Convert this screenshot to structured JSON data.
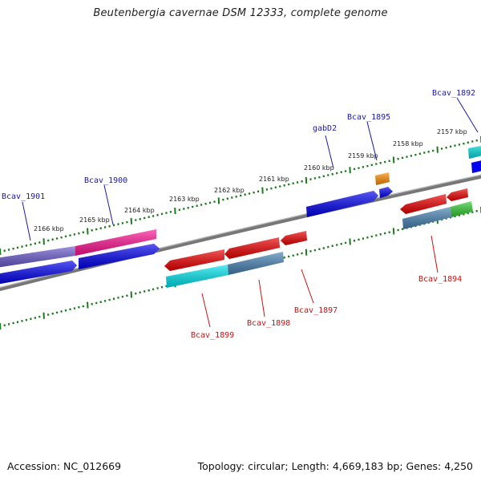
{
  "title": "Beutenbergia cavernae DSM 12333, complete genome",
  "footer": {
    "accession": "Accession: NC_012669",
    "summary": "Topology: circular; Length: 4,669,183 bp; Genes: 4,250"
  },
  "colors": {
    "backbone": "#7a7a7a",
    "ticks": "#1e7a1e",
    "label_blue": "#1a1aa8",
    "label_red": "#cc1111"
  },
  "kbp_labels": [
    "2157 kbp",
    "2158 kbp",
    "2159 kbp",
    "2160 kbp",
    "2161 kbp",
    "2162 kbp",
    "2163 kbp",
    "2164 kbp",
    "2165 kbp",
    "2166 kbp"
  ],
  "genes_top": [
    {
      "name": "Bcav_1901",
      "label": "Bcav_1901",
      "color": "#6a5acd"
    },
    {
      "name": "Bcav_1900",
      "label": "Bcav_1900",
      "color": "#ff1493"
    },
    {
      "name": "gabD2",
      "label": "gabD2",
      "color": "#0000ee"
    },
    {
      "name": "Bcav_1895",
      "label": "Bcav_1895",
      "color": "#ff8c00"
    },
    {
      "name": "Bcav_1892",
      "label": "Bcav_1892",
      "color": "#00dddd"
    }
  ],
  "genes_bottom": [
    {
      "name": "Bcav_1899",
      "label": "Bcav_1899",
      "color": "#00e5ee"
    },
    {
      "name": "Bcav_1898",
      "label": "Bcav_1898",
      "color": "#4682b4"
    },
    {
      "name": "Bcav_1897",
      "label": "Bcav_1897",
      "color": "#ee0000"
    },
    {
      "name": "Bcav_1894",
      "label": "Bcav_1894",
      "color": "#4682b4"
    }
  ]
}
